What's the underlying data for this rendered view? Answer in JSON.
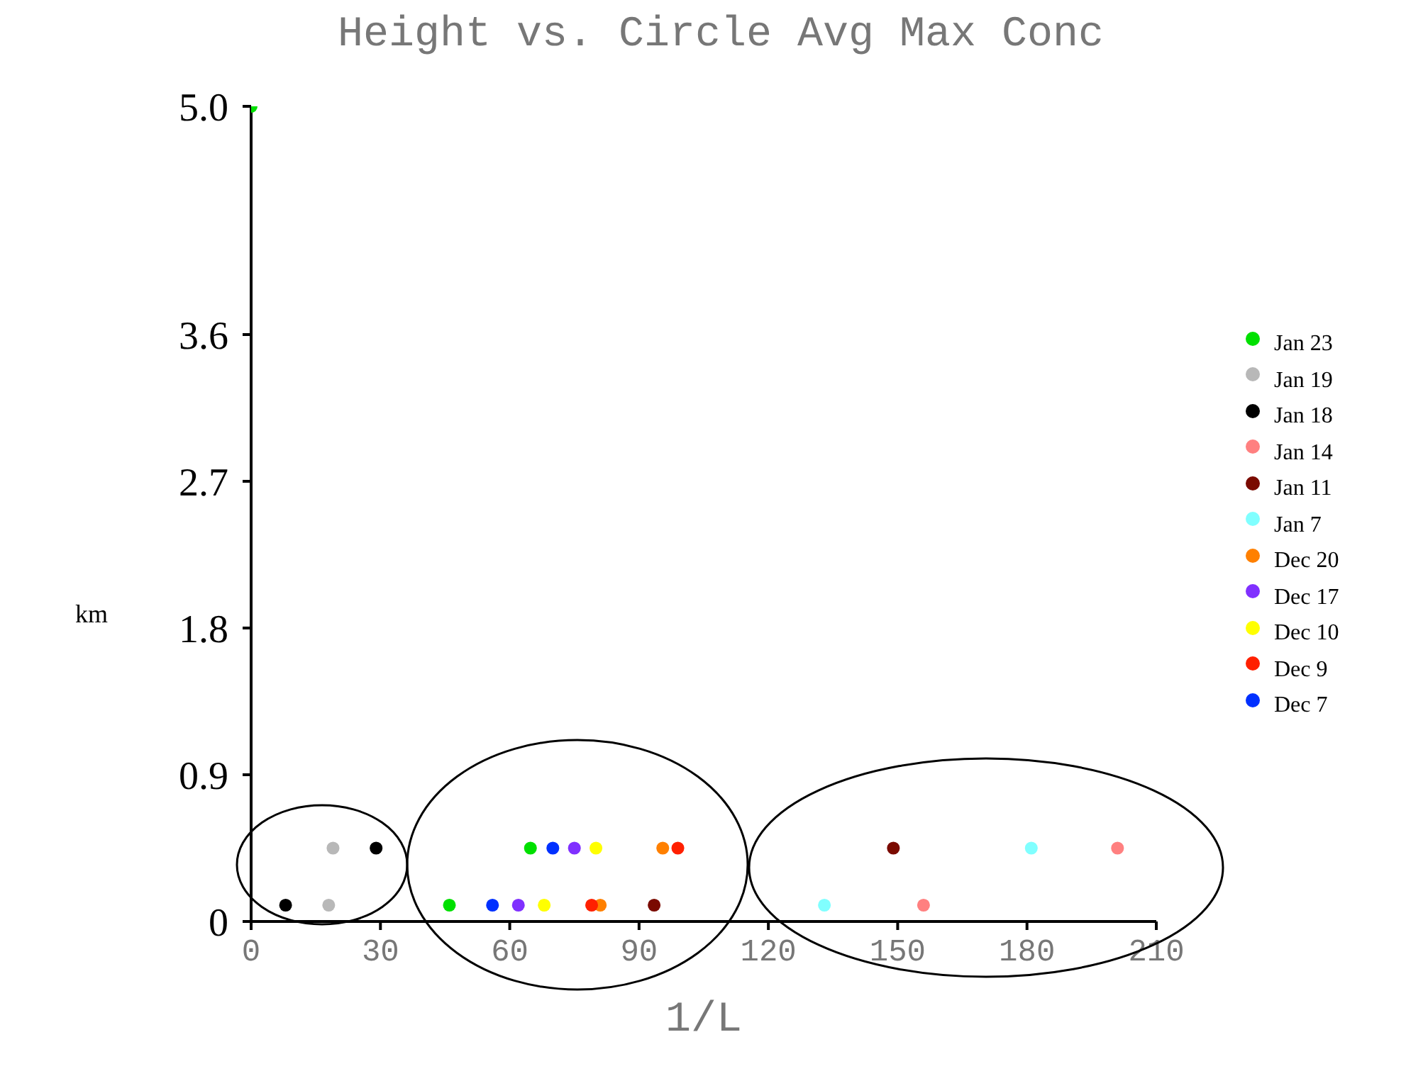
{
  "chart_data": {
    "type": "scatter",
    "title": "Height vs. Circle Avg Max Conc",
    "xlabel": "1/L",
    "ylabel": "km",
    "xlim": [
      0,
      210
    ],
    "xticks": [
      0,
      30,
      60,
      90,
      120,
      150,
      180,
      210
    ],
    "ylim": [
      0,
      5
    ],
    "yticks": [
      0,
      0.9,
      1.8,
      2.7,
      3.6,
      {
        "value": 5,
        "label": "5.0"
      }
    ],
    "legend": "right",
    "marker": "circle",
    "grid": false,
    "series": [
      {
        "name": "Jan 23",
        "color": "#00e000",
        "x": [
          0,
          64.8,
          46
        ],
        "values": [
          5.0,
          0.45,
          0.1
        ]
      },
      {
        "name": "Jan 19",
        "color": "#b8b8b8",
        "x": [
          19,
          18
        ],
        "values": [
          0.45,
          0.1
        ]
      },
      {
        "name": "Jan 18",
        "color": "#000000",
        "x": [
          29,
          8
        ],
        "values": [
          0.45,
          0.1
        ]
      },
      {
        "name": "Jan 14",
        "color": "#ff8080",
        "x": [
          201,
          156
        ],
        "values": [
          0.45,
          0.1
        ]
      },
      {
        "name": "Jan 11",
        "color": "#7a0a00",
        "x": [
          149,
          93.5
        ],
        "values": [
          0.45,
          0.1
        ]
      },
      {
        "name": "Jan 7",
        "color": "#80ffff",
        "x": [
          181,
          133
        ],
        "values": [
          0.45,
          0.1
        ]
      },
      {
        "name": "Dec 20",
        "color": "#ff8000",
        "x": [
          95.5,
          81
        ],
        "values": [
          0.45,
          0.1
        ]
      },
      {
        "name": "Dec 17",
        "color": "#8030ff",
        "x": [
          75,
          62
        ],
        "values": [
          0.45,
          0.1
        ]
      },
      {
        "name": "Dec 10",
        "color": "#ffff00",
        "x": [
          80,
          68
        ],
        "values": [
          0.45,
          0.1
        ]
      },
      {
        "name": "Dec 9",
        "color": "#ff2000",
        "x": [
          99,
          79
        ],
        "values": [
          0.45,
          0.1
        ]
      },
      {
        "name": "Dec 7",
        "color": "#0030ff",
        "x": [
          70,
          56
        ],
        "values": [
          0.45,
          0.1
        ]
      }
    ]
  }
}
